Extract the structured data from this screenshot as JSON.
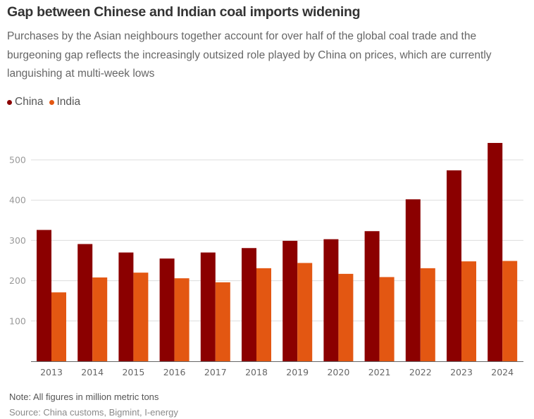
{
  "title": "Gap between Chinese and Indian coal imports widening",
  "subtitle": "Purchases by the Asian neighbours together account for over half of the global coal trade and the burgeoning gap reflects the increasingly outsized role played by China on prices, which are currently languishing at multi-week lows",
  "legend": [
    {
      "label": "China",
      "color": "#8b0000"
    },
    {
      "label": "India",
      "color": "#e35712"
    }
  ],
  "note": "Note: All figures in million metric tons",
  "source": "Source: China customs, Bigmint, I-energy",
  "chart_data": {
    "type": "bar",
    "title": "Gap between Chinese and Indian coal imports widening",
    "xlabel": "",
    "ylabel": "",
    "ylim": [
      0,
      560
    ],
    "yticks": [
      100,
      200,
      300,
      400,
      500
    ],
    "grid": true,
    "legend_position": "top-left",
    "categories": [
      "2013",
      "2014",
      "2015",
      "2016",
      "2017",
      "2018",
      "2019",
      "2020",
      "2021",
      "2022",
      "2023",
      "2024"
    ],
    "series": [
      {
        "name": "China",
        "color": "#8b0000",
        "values": [
          326,
          291,
          270,
          255,
          270,
          281,
          299,
          303,
          323,
          402,
          474,
          542
        ]
      },
      {
        "name": "India",
        "color": "#e35712",
        "values": [
          171,
          208,
          220,
          206,
          196,
          231,
          244,
          217,
          209,
          231,
          248,
          249
        ]
      }
    ]
  }
}
